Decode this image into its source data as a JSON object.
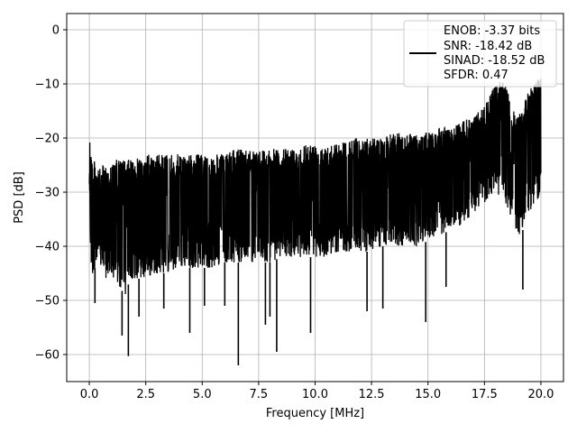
{
  "chart_data": {
    "type": "line",
    "xlabel": "Frequency [MHz]",
    "ylabel": "PSD [dB]",
    "xlim": [
      -1.0,
      21.0
    ],
    "ylim": [
      -65,
      3
    ],
    "xticks": [
      0.0,
      2.5,
      5.0,
      7.5,
      10.0,
      12.5,
      15.0,
      17.5,
      20.0
    ],
    "xtick_labels": [
      "0.0",
      "2.5",
      "5.0",
      "7.5",
      "10.0",
      "12.5",
      "15.0",
      "17.5",
      "20.0"
    ],
    "yticks": [
      0,
      -10,
      -20,
      -30,
      -40,
      -50,
      -60
    ],
    "ytick_labels": [
      "0",
      "−10",
      "−20",
      "−30",
      "−40",
      "−50",
      "−60"
    ],
    "grid": true,
    "legend_position": "top-right",
    "series": [
      {
        "color": "#000000",
        "x": [
          0.0,
          0.05,
          0.1,
          0.15,
          0.2,
          0.3,
          0.4,
          0.5,
          0.6,
          0.7,
          0.8,
          0.9,
          1.0,
          1.2,
          1.4,
          1.6,
          1.8,
          2.0,
          2.5,
          3.0,
          3.5,
          4.0,
          4.5,
          5.0,
          5.5,
          6.0,
          6.5,
          7.0,
          7.5,
          8.0,
          8.5,
          9.0,
          9.5,
          10.0,
          10.5,
          11.0,
          11.5,
          12.0,
          12.5,
          13.0,
          13.5,
          14.0,
          14.5,
          15.0,
          15.5,
          16.0,
          16.5,
          17.0,
          17.5,
          18.0,
          18.2,
          18.5,
          18.8,
          19.0,
          19.2,
          19.5,
          19.8,
          20.0
        ],
        "upper": [
          -15,
          -20,
          -23,
          -24,
          -24,
          -25,
          -25,
          -26,
          -25,
          -25,
          -25,
          -25,
          -25,
          -24,
          -24,
          -24,
          -24,
          -24,
          -23,
          -23,
          -23,
          -23,
          -23,
          -23,
          -23,
          -23,
          -22,
          -22,
          -22,
          -22,
          -22,
          -22,
          -21,
          -21,
          -21,
          -21,
          -20,
          -20,
          -20,
          -20,
          -19,
          -19,
          -19,
          -19,
          -18,
          -18,
          -17,
          -16,
          -14,
          -10,
          -9,
          -11,
          -15,
          -16,
          -14,
          -11,
          -9,
          -8
        ],
        "lower": [
          -30,
          -40,
          -47,
          -46,
          -44,
          -44,
          -44,
          -44,
          -45,
          -46,
          -46,
          -45,
          -46,
          -47,
          -48,
          -49,
          -46,
          -46,
          -46,
          -45,
          -45,
          -44,
          -44,
          -44,
          -44,
          -43,
          -43,
          -43,
          -43,
          -43,
          -42,
          -42,
          -42,
          -42,
          -42,
          -41,
          -41,
          -41,
          -41,
          -40,
          -40,
          -40,
          -40,
          -39,
          -38,
          -37,
          -36,
          -34,
          -32,
          -30,
          -31,
          -33,
          -36,
          -38,
          -37,
          -34,
          -32,
          -30
        ],
        "dips": [
          [
            0.25,
            -50.5
          ],
          [
            1.45,
            -56.5
          ],
          [
            1.73,
            -60.3
          ],
          [
            2.2,
            -53.0
          ],
          [
            3.3,
            -51.5
          ],
          [
            4.45,
            -56.0
          ],
          [
            5.1,
            -51.0
          ],
          [
            6.0,
            -51.0
          ],
          [
            6.6,
            -62.0
          ],
          [
            7.8,
            -54.5
          ],
          [
            8.0,
            -53.0
          ],
          [
            8.3,
            -59.5
          ],
          [
            9.8,
            -56.0
          ],
          [
            12.3,
            -52.0
          ],
          [
            13.0,
            -51.5
          ],
          [
            14.9,
            -54.0
          ],
          [
            15.8,
            -47.5
          ],
          [
            19.2,
            -48.0
          ]
        ]
      }
    ]
  },
  "legend": {
    "line1": "ENOB: -3.37 bits",
    "line2": "SNR: -18.42 dB",
    "line3": "SINAD: -18.52 dB",
    "line4": "SFDR: 0.47"
  }
}
